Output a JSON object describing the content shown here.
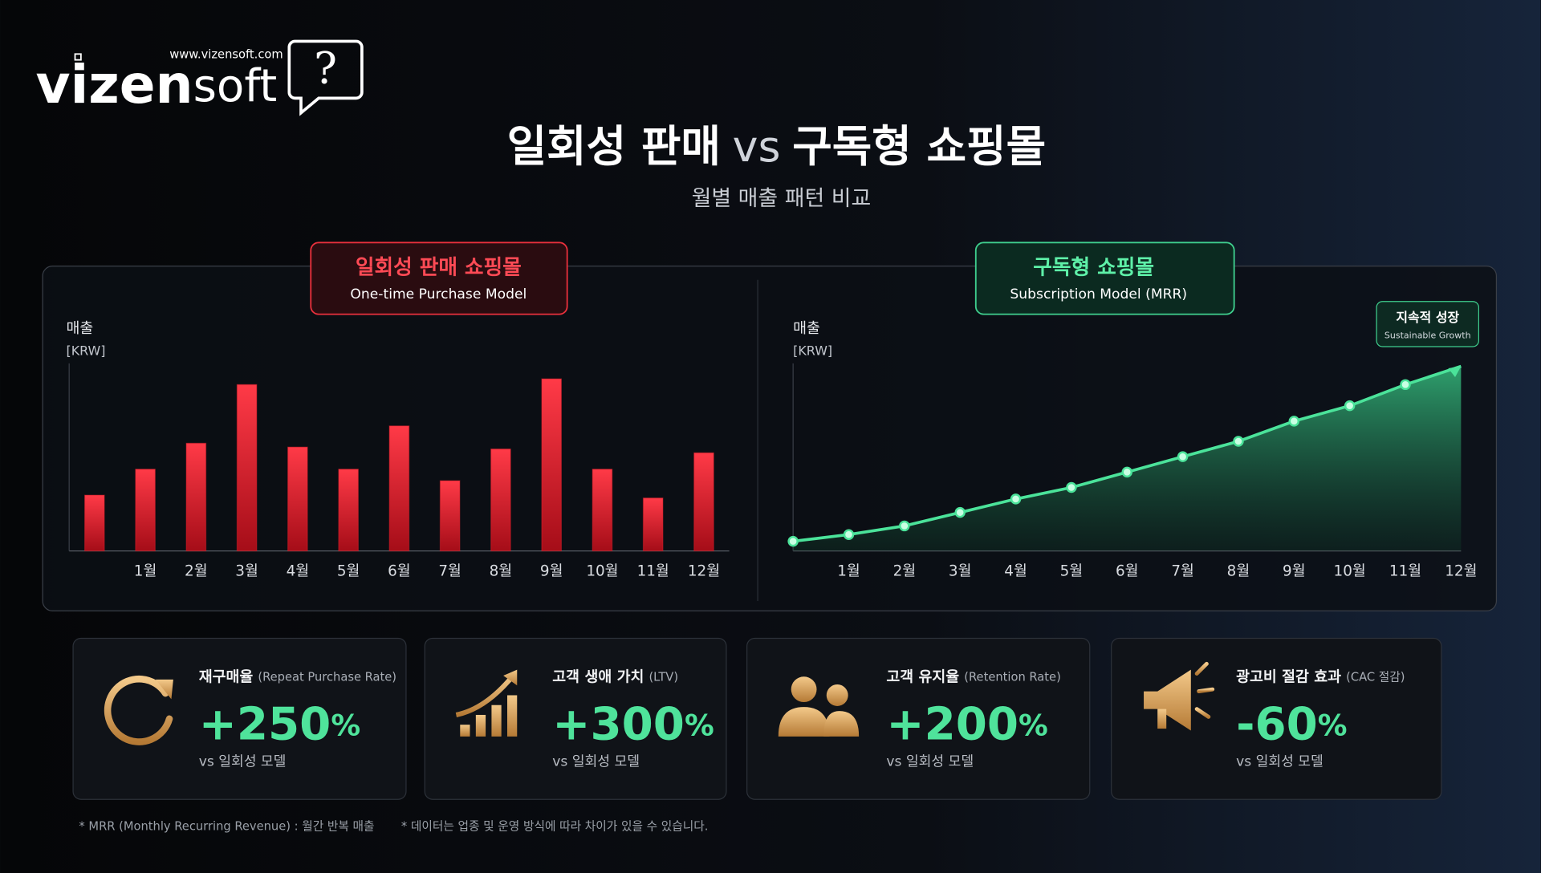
{
  "header": {
    "logo_bold": "vizen",
    "logo_light": "soft",
    "logo_icon": "?",
    "url": "www.vizensoft.com",
    "title_left": "일회성 판매",
    "title_vs": "vs",
    "title_right": "구독형 쇼핑몰",
    "subtitle": "월별 매출 패턴 비교"
  },
  "chart_data": [
    {
      "type": "bar",
      "title": "일회성 판매 쇼핑몰",
      "subtitle": "One-time Purchase Model",
      "y_label": "매출",
      "y_unit": "[KRW]",
      "categories": [
        null,
        "1월",
        "2월",
        "3월",
        "4월",
        "5월",
        "6월",
        "7월",
        "8월",
        "9월",
        "10월",
        "11월",
        "12월"
      ],
      "values": [
        58,
        85,
        112,
        173,
        108,
        85,
        130,
        73,
        106,
        179,
        85,
        55,
        102
      ],
      "color": "#e8202e",
      "ylim": [
        0,
        190
      ]
    },
    {
      "type": "line",
      "title": "구독형 쇼핑몰",
      "subtitle": "Subscription Model (MRR)",
      "y_label": "매출",
      "y_unit": "[KRW]",
      "annotation": "지속적 성장",
      "annotation_sub": "Sustainable Growth",
      "categories": [
        null,
        "1월",
        "2월",
        "3월",
        "4월",
        "5월",
        "6월",
        "7월",
        "8월",
        "9월",
        "10월",
        "11월",
        "12월"
      ],
      "values": [
        10,
        17,
        26,
        40,
        54,
        66,
        82,
        98,
        114,
        135,
        151,
        173,
        192
      ],
      "color": "#4be39a",
      "ylim": [
        0,
        190
      ]
    }
  ],
  "kpis": [
    {
      "label": "재구매율",
      "label_en": "(Repeat Purchase Rate)",
      "value": "+250",
      "unit": "%",
      "note": "vs 일회성 모델"
    },
    {
      "label": "고객 생애 가치",
      "label_en": "(LTV)",
      "value": "+300",
      "unit": "%",
      "note": "vs 일회성 모델"
    },
    {
      "label": "고객 유지율",
      "label_en": "(Retention Rate)",
      "value": "+200",
      "unit": "%",
      "note": "vs 일회성 모델"
    },
    {
      "label": "광고비 절감 효과",
      "label_en": "(CAC 절감)",
      "value": "-60",
      "unit": "%",
      "note": "vs 일회성 모델"
    }
  ],
  "footnotes": [
    "* MRR (Monthly Recurring Revenue) : 월간 반복 매출",
    "* 데이터는 업종 및 운영 방식에 따라 차이가 있을 수 있습니다."
  ]
}
